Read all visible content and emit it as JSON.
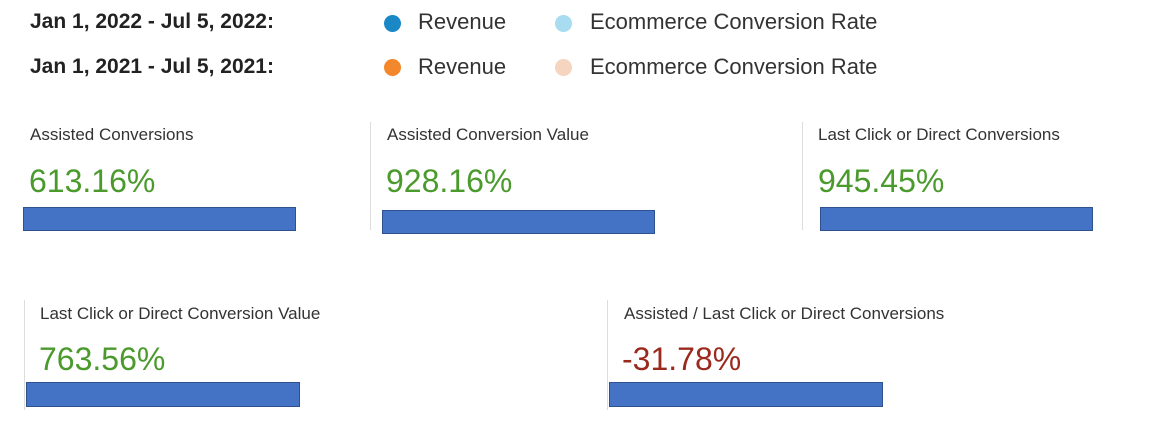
{
  "legend": [
    {
      "range": "Jan 1, 2022 - Jul 5, 2022:",
      "items": [
        "Revenue",
        "Ecommerce Conversion Rate"
      ]
    },
    {
      "range": "Jan 1, 2021 - Jul 5, 2021:",
      "items": [
        "Revenue",
        "Ecommerce Conversion Rate"
      ]
    }
  ],
  "metrics": [
    {
      "label": "Assisted Conversions",
      "value": "613.16%"
    },
    {
      "label": "Assisted Conversion Value",
      "value": "928.16%"
    },
    {
      "label": "Last Click or Direct Conversions",
      "value": "945.45%"
    },
    {
      "label": "Last Click or Direct Conversion Value",
      "value": "763.56%"
    },
    {
      "label": "Assisted / Last Click or Direct Conversions",
      "value": "-31.78%"
    }
  ]
}
